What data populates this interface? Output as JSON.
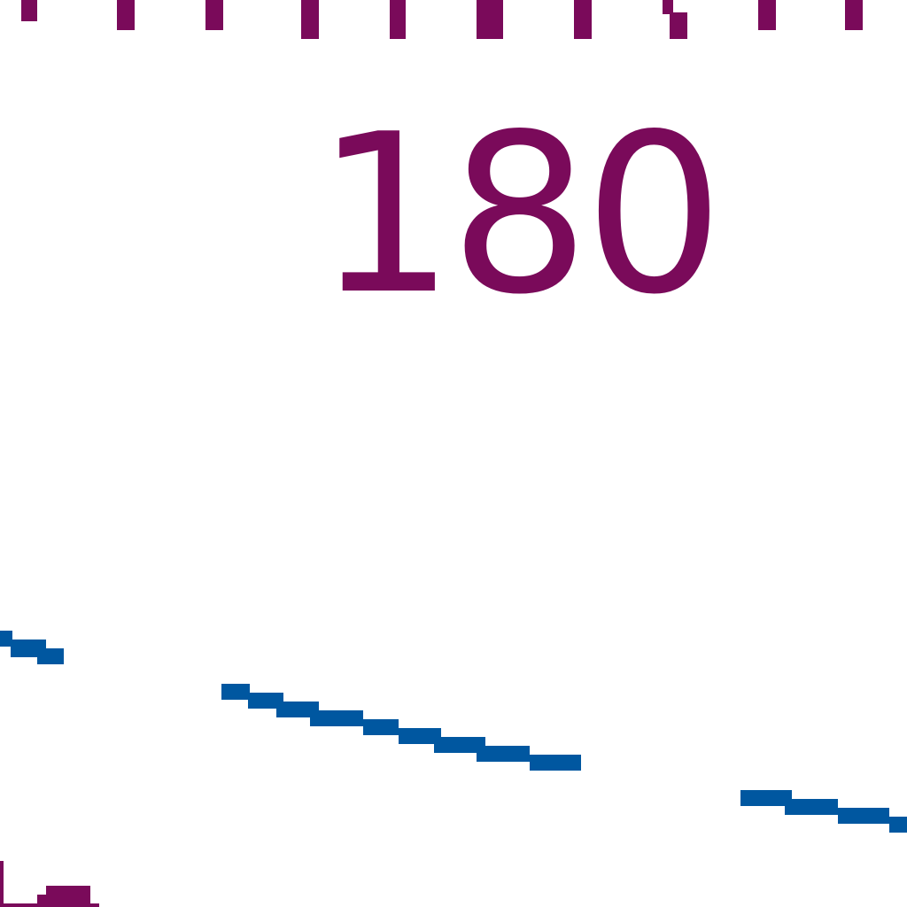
{
  "map": {
    "contour_label": "180",
    "colors": {
      "contour": "#7a0a5a",
      "route": "#0057a0",
      "background": "#ffffff"
    },
    "features": [
      "tick-marks",
      "contour-label",
      "blue-route-line",
      "corner-mark"
    ]
  }
}
